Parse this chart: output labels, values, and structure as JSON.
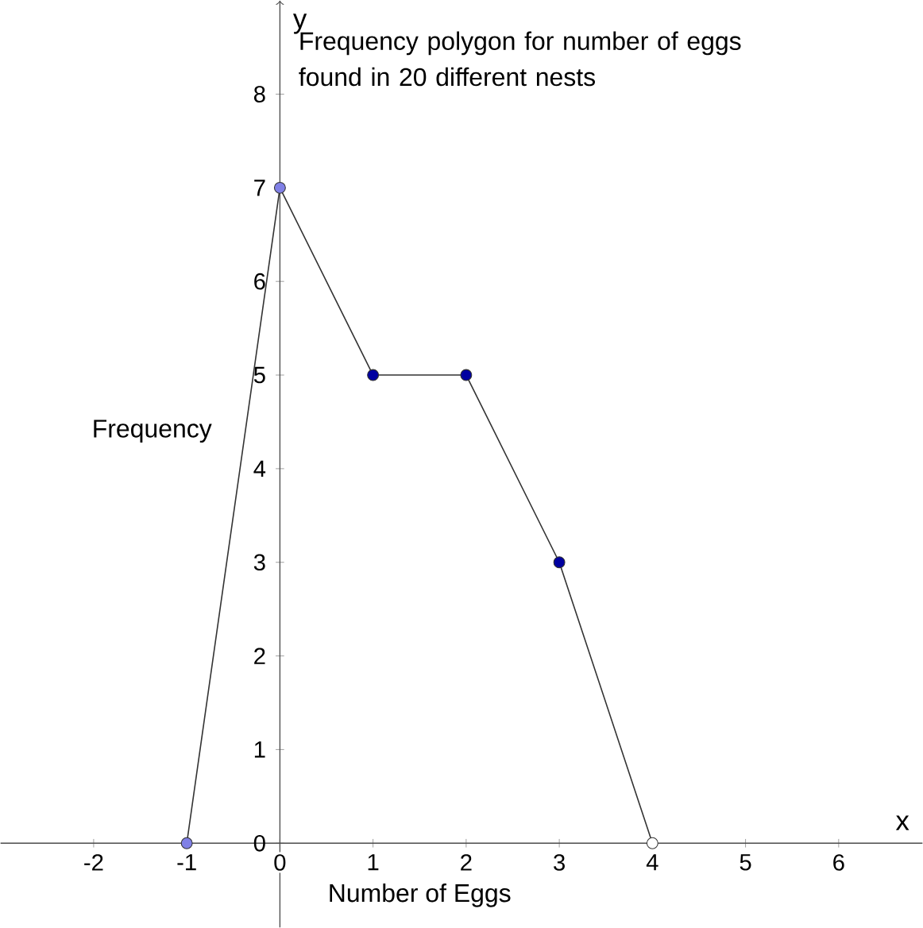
{
  "chart_data": {
    "type": "line",
    "title": "Frequency polygon for number of eggs found in 20 different nests",
    "xlabel": "Number of Eggs",
    "ylabel": "Frequency",
    "annotations": [
      "x",
      "y"
    ],
    "x": [
      -1,
      0,
      1,
      2,
      3,
      4
    ],
    "series": [
      {
        "color": "#333333",
        "values": [
          0,
          7,
          5,
          5,
          3,
          0
        ],
        "colors": [
          "#8080e6",
          "#8080e6",
          "#0000a0",
          "#0000a0",
          "#0000a0",
          "#ffffff"
        ]
      }
    ],
    "xlim": [
      -3,
      6.9
    ],
    "ylim": [
      -0.9,
      9
    ],
    "xticks": [
      -2,
      -1,
      0,
      1,
      2,
      3,
      4,
      5,
      6
    ],
    "yticks": [
      0,
      1,
      2,
      3,
      4,
      5,
      6,
      7,
      8
    ],
    "marker": "circle",
    "line_style": "solid",
    "grid": false
  }
}
